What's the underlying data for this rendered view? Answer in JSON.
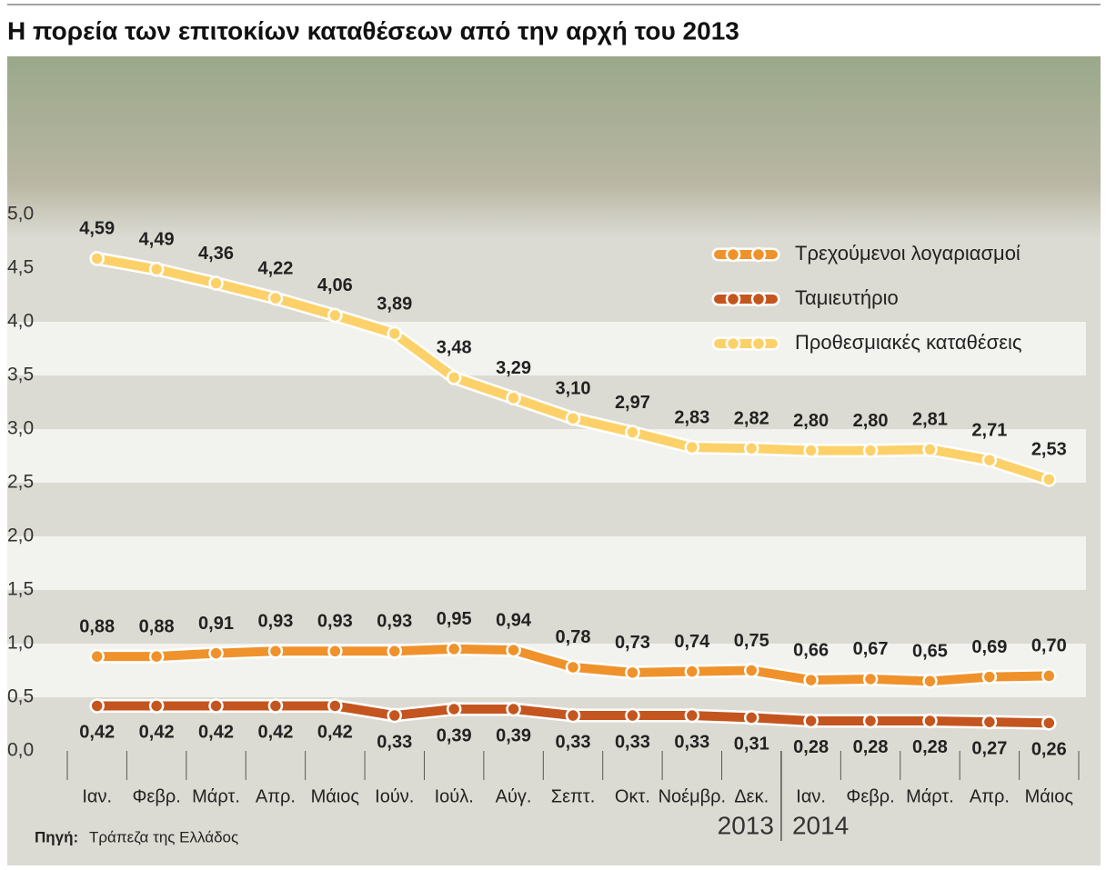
{
  "title": "Η πορεία των επιτοκίων καταθέσεων από την αρχή του 2013",
  "source": {
    "label": "Πηγή:",
    "text": "Τράπεζα της Ελλάδος"
  },
  "chart_data": {
    "type": "line",
    "categories": [
      "Ιαν.",
      "Φεβρ.",
      "Μάρτ.",
      "Απρ.",
      "Μάιος",
      "Ιούν.",
      "Ιούλ.",
      "Αύγ.",
      "Σεπτ.",
      "Οκτ.",
      "Νοέμβρ.",
      "Δεκ.",
      "Ιαν.",
      "Φεβρ.",
      "Μάρτ.",
      "Απρ.",
      "Μάιος"
    ],
    "groups": [
      {
        "label": "2013",
        "start": 0,
        "end": 11
      },
      {
        "label": "2014",
        "start": 12,
        "end": 16
      }
    ],
    "ylim": [
      0,
      5
    ],
    "yticks": [
      {
        "value": 0,
        "label": "0,0"
      },
      {
        "value": 0.5,
        "label": "0,5"
      },
      {
        "value": 1,
        "label": "1,0"
      },
      {
        "value": 1.5,
        "label": "1,5"
      },
      {
        "value": 2,
        "label": "2,0"
      },
      {
        "value": 2.5,
        "label": "2,5"
      },
      {
        "value": 3,
        "label": "3,0"
      },
      {
        "value": 3.5,
        "label": "3,5"
      },
      {
        "value": 4,
        "label": "4,0"
      },
      {
        "value": 4.5,
        "label": "4,5"
      },
      {
        "value": 5,
        "label": "5,0"
      }
    ],
    "legend": "top-right",
    "series": [
      {
        "name": "Τρεχούμενοι λογαριασμοί",
        "color": "#f0922b",
        "values": [
          0.88,
          0.88,
          0.91,
          0.93,
          0.93,
          0.93,
          0.95,
          0.94,
          0.78,
          0.73,
          0.74,
          0.75,
          0.66,
          0.67,
          0.65,
          0.69,
          0.7
        ],
        "value_labels": [
          "0,88",
          "0,88",
          "0,91",
          "0,93",
          "0,93",
          "0,93",
          "0,95",
          "0,94",
          "0,78",
          "0,73",
          "0,74",
          "0,75",
          "0,66",
          "0,67",
          "0,65",
          "0,69",
          "0,70"
        ]
      },
      {
        "name": "Ταμιευτήριο",
        "color": "#c4551f",
        "values": [
          0.42,
          0.42,
          0.42,
          0.42,
          0.42,
          0.33,
          0.39,
          0.39,
          0.33,
          0.33,
          0.33,
          0.31,
          0.28,
          0.28,
          0.28,
          0.27,
          0.26
        ],
        "value_labels": [
          "0,42",
          "0,42",
          "0,42",
          "0,42",
          "0,42",
          "0,33",
          "0,39",
          "0,39",
          "0,33",
          "0,33",
          "0,33",
          "0,31",
          "0,28",
          "0,28",
          "0,28",
          "0,27",
          "0,26"
        ]
      },
      {
        "name": "Προθεσμιακές καταθέσεις",
        "color": "#fdd16a",
        "values": [
          4.59,
          4.49,
          4.36,
          4.22,
          4.06,
          3.89,
          3.48,
          3.29,
          3.1,
          2.97,
          2.83,
          2.82,
          2.8,
          2.8,
          2.81,
          2.71,
          2.53
        ],
        "value_labels": [
          "4,59",
          "4,49",
          "4,36",
          "4,22",
          "4,06",
          "3,89",
          "3,48",
          "3,29",
          "3,10",
          "2,97",
          "2,83",
          "2,82",
          "2,80",
          "2,80",
          "2,81",
          "2,71",
          "2,53"
        ]
      }
    ]
  }
}
